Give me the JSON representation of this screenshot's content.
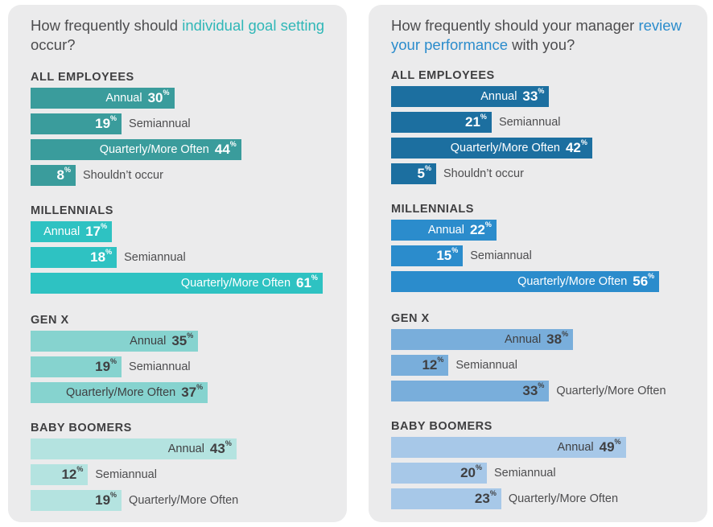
{
  "chart_data": [
    {
      "type": "bar",
      "orientation": "horizontal",
      "title_parts": [
        "How frequently should ",
        "individual goal setting",
        " occur?"
      ],
      "value_suffix": "%",
      "groups": [
        {
          "name": "ALL EMPLOYEES",
          "color": "#3a9c9c",
          "text_color": "#ffffff",
          "bars": [
            {
              "label": "Annual",
              "value": 30,
              "label_inside": true
            },
            {
              "label": "Semiannual",
              "value": 19,
              "label_inside": false
            },
            {
              "label": "Quarterly/More Often",
              "value": 44,
              "label_inside": true
            },
            {
              "label": "Shouldn’t occur",
              "value": 8,
              "label_inside": false
            }
          ]
        },
        {
          "name": "MILLENNIALS",
          "color": "#2ec2c2",
          "text_color": "#ffffff",
          "bars": [
            {
              "label": "Annual",
              "value": 17,
              "label_inside": true
            },
            {
              "label": "Semiannual",
              "value": 18,
              "label_inside": false
            },
            {
              "label": "Quarterly/More Often",
              "value": 61,
              "label_inside": true
            }
          ]
        },
        {
          "name": "GEN X",
          "color": "#86d3cf",
          "text_color": "#3f3f41",
          "bars": [
            {
              "label": "Annual",
              "value": 35,
              "label_inside": true
            },
            {
              "label": "Semiannual",
              "value": 19,
              "label_inside": false
            },
            {
              "label": "Quarterly/More Often",
              "value": 37,
              "label_inside": true
            }
          ]
        },
        {
          "name": "BABY BOOMERS",
          "color": "#b4e3e0",
          "text_color": "#3f3f41",
          "bars": [
            {
              "label": "Annual",
              "value": 43,
              "label_inside": true
            },
            {
              "label": "Semiannual",
              "value": 12,
              "label_inside": false
            },
            {
              "label": "Quarterly/More Often",
              "value": 19,
              "label_inside": false
            }
          ]
        }
      ]
    },
    {
      "type": "bar",
      "orientation": "horizontal",
      "title_parts": [
        "How frequently should your manager ",
        "review your performance",
        " with you?"
      ],
      "value_suffix": "%",
      "groups": [
        {
          "name": "ALL EMPLOYEES",
          "color": "#1c6fa0",
          "text_color": "#ffffff",
          "bars": [
            {
              "label": "Annual",
              "value": 33,
              "label_inside": true
            },
            {
              "label": "Semiannual",
              "value": 21,
              "label_inside": false
            },
            {
              "label": "Quarterly/More Often",
              "value": 42,
              "label_inside": true
            },
            {
              "label": "Shouldn’t occur",
              "value": 5,
              "label_inside": false
            }
          ]
        },
        {
          "name": "MILLENNIALS",
          "color": "#2b8ccc",
          "text_color": "#ffffff",
          "bars": [
            {
              "label": "Annual",
              "value": 22,
              "label_inside": true
            },
            {
              "label": "Semiannual",
              "value": 15,
              "label_inside": false
            },
            {
              "label": "Quarterly/More Often",
              "value": 56,
              "label_inside": true
            }
          ]
        },
        {
          "name": "GEN X",
          "color": "#79aedb",
          "text_color": "#3f3f41",
          "bars": [
            {
              "label": "Annual",
              "value": 38,
              "label_inside": true
            },
            {
              "label": "Semiannual",
              "value": 12,
              "label_inside": false
            },
            {
              "label": "Quarterly/More Often",
              "value": 33,
              "label_inside": false
            }
          ]
        },
        {
          "name": "BABY BOOMERS",
          "color": "#a7c8e8",
          "text_color": "#3f3f41",
          "bars": [
            {
              "label": "Annual",
              "value": 49,
              "label_inside": true
            },
            {
              "label": "Semiannual",
              "value": 20,
              "label_inside": false
            },
            {
              "label": "Quarterly/More Often",
              "value": 23,
              "label_inside": false
            }
          ]
        }
      ]
    }
  ],
  "panels": [
    {
      "highlight_color": "#2fb7b7"
    },
    {
      "highlight_color": "#2b8ccc"
    }
  ]
}
